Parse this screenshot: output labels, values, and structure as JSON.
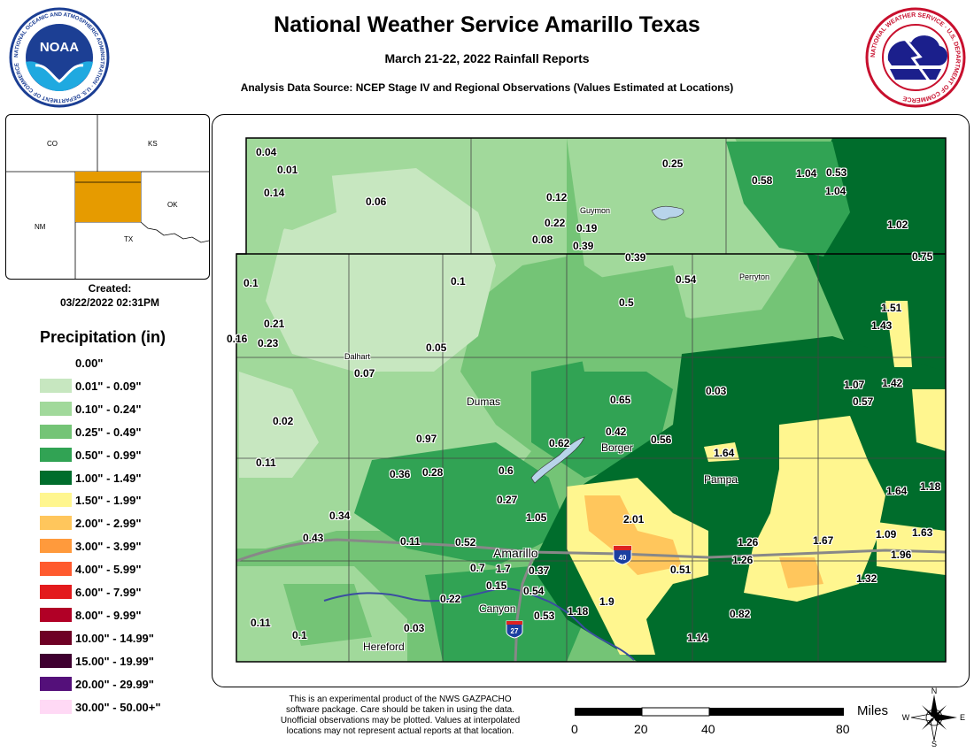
{
  "header": {
    "title": "National Weather Service Amarillo Texas",
    "subtitle": "March 21-22, 2022 Rainfall Reports",
    "source": "Analysis Data Source: NCEP Stage IV and Regional Observations (Values Estimated at Locations)"
  },
  "logos": {
    "noaa_center": "NOAA",
    "noaa_ring": "NATIONAL OCEANIC AND ATMOSPHERIC ADMINISTRATION · U.S. DEPARTMENT OF COMMERCE",
    "nws_ring": "NATIONAL WEATHER SERVICE · U.S. DEPARTMENT OF COMMERCE"
  },
  "inset": {
    "states": [
      "CO",
      "KS",
      "NM",
      "OK",
      "TX"
    ]
  },
  "created": {
    "label": "Created:",
    "date": "03/22/2022 02:31PM"
  },
  "legend": {
    "title": "Precipitation (in)",
    "items": [
      {
        "label": "0.00\"",
        "color": "#ffffff"
      },
      {
        "label": "0.01\" - 0.09\"",
        "color": "#c7e7c0"
      },
      {
        "label": "0.10\" - 0.24\"",
        "color": "#a1d99b"
      },
      {
        "label": "0.25\" - 0.49\"",
        "color": "#74c476"
      },
      {
        "label": "0.50\" - 0.99\"",
        "color": "#31a354"
      },
      {
        "label": "1.00\" - 1.49\"",
        "color": "#006d2c"
      },
      {
        "label": "1.50\" - 1.99\"",
        "color": "#fff68f"
      },
      {
        "label": "2.00\" - 2.99\"",
        "color": "#ffc65c"
      },
      {
        "label": "3.00\" - 3.99\"",
        "color": "#ff9a3c"
      },
      {
        "label": "4.00\" - 5.99\"",
        "color": "#ff5a2e"
      },
      {
        "label": "6.00\" - 7.99\"",
        "color": "#e31a1c"
      },
      {
        "label": "8.00\" - 9.99\"",
        "color": "#b10026"
      },
      {
        "label": "10.00\" - 14.99\"",
        "color": "#6e0024"
      },
      {
        "label": "15.00\" - 19.99\"",
        "color": "#3f0030"
      },
      {
        "label": "20.00\" - 29.99\"",
        "color": "#54107a"
      },
      {
        "label": "30.00\" - 50.00+\"",
        "color": "#ffd9f5"
      }
    ]
  },
  "cities": [
    "Guymon",
    "Perryton",
    "Dalhart",
    "Dumas",
    "Borger",
    "Pampa",
    "Amarillo",
    "Canyon",
    "Hereford"
  ],
  "highways": [
    "40",
    "27"
  ],
  "reports": [
    "0.04",
    "0.01",
    "0.14",
    "0.06",
    "0.25",
    "0.58",
    "1.04",
    "0.53",
    "1.04",
    "0.12",
    "0.22",
    "0.19",
    "0.08",
    "0.39",
    "1.02",
    "0.39",
    "0.75",
    "0.1",
    "0.1",
    "0.54",
    "0.5",
    "1.51",
    "1.43",
    "0.21",
    "0.16",
    "0.23",
    "0.05",
    "0.07",
    "1.07",
    "1.42",
    "0.03",
    "0.65",
    "0.57",
    "0.02",
    "0.97",
    "0.62",
    "0.42",
    "0.56",
    "1.64",
    "0.11",
    "0.36",
    "0.28",
    "0.6",
    "1.64",
    "1.18",
    "0.27",
    "0.34",
    "1.05",
    "2.01",
    "0.43",
    "0.11",
    "0.52",
    "1.26",
    "1.67",
    "1.09",
    "1.63",
    "0.7",
    "1.7",
    "0.37",
    "1.26",
    "1.96",
    "0.51",
    "0.15",
    "0.54",
    "1.32",
    "0.22",
    "1.9",
    "0.82",
    "0.11",
    "0.1",
    "0.03",
    "0.53",
    "1.18",
    "1.14"
  ],
  "disclaimer": [
    "This is an experimental product of the NWS GAZPACHO",
    "software package. Care should be taken in using the data.",
    "Unofficial observations may be plotted. Values at interpolated",
    "locations may not represent actual reports at that location."
  ],
  "scale": {
    "ticks": [
      "0",
      "20",
      "40",
      "80"
    ],
    "unit": "Miles"
  },
  "compass": [
    "N",
    "E",
    "S",
    "W"
  ]
}
